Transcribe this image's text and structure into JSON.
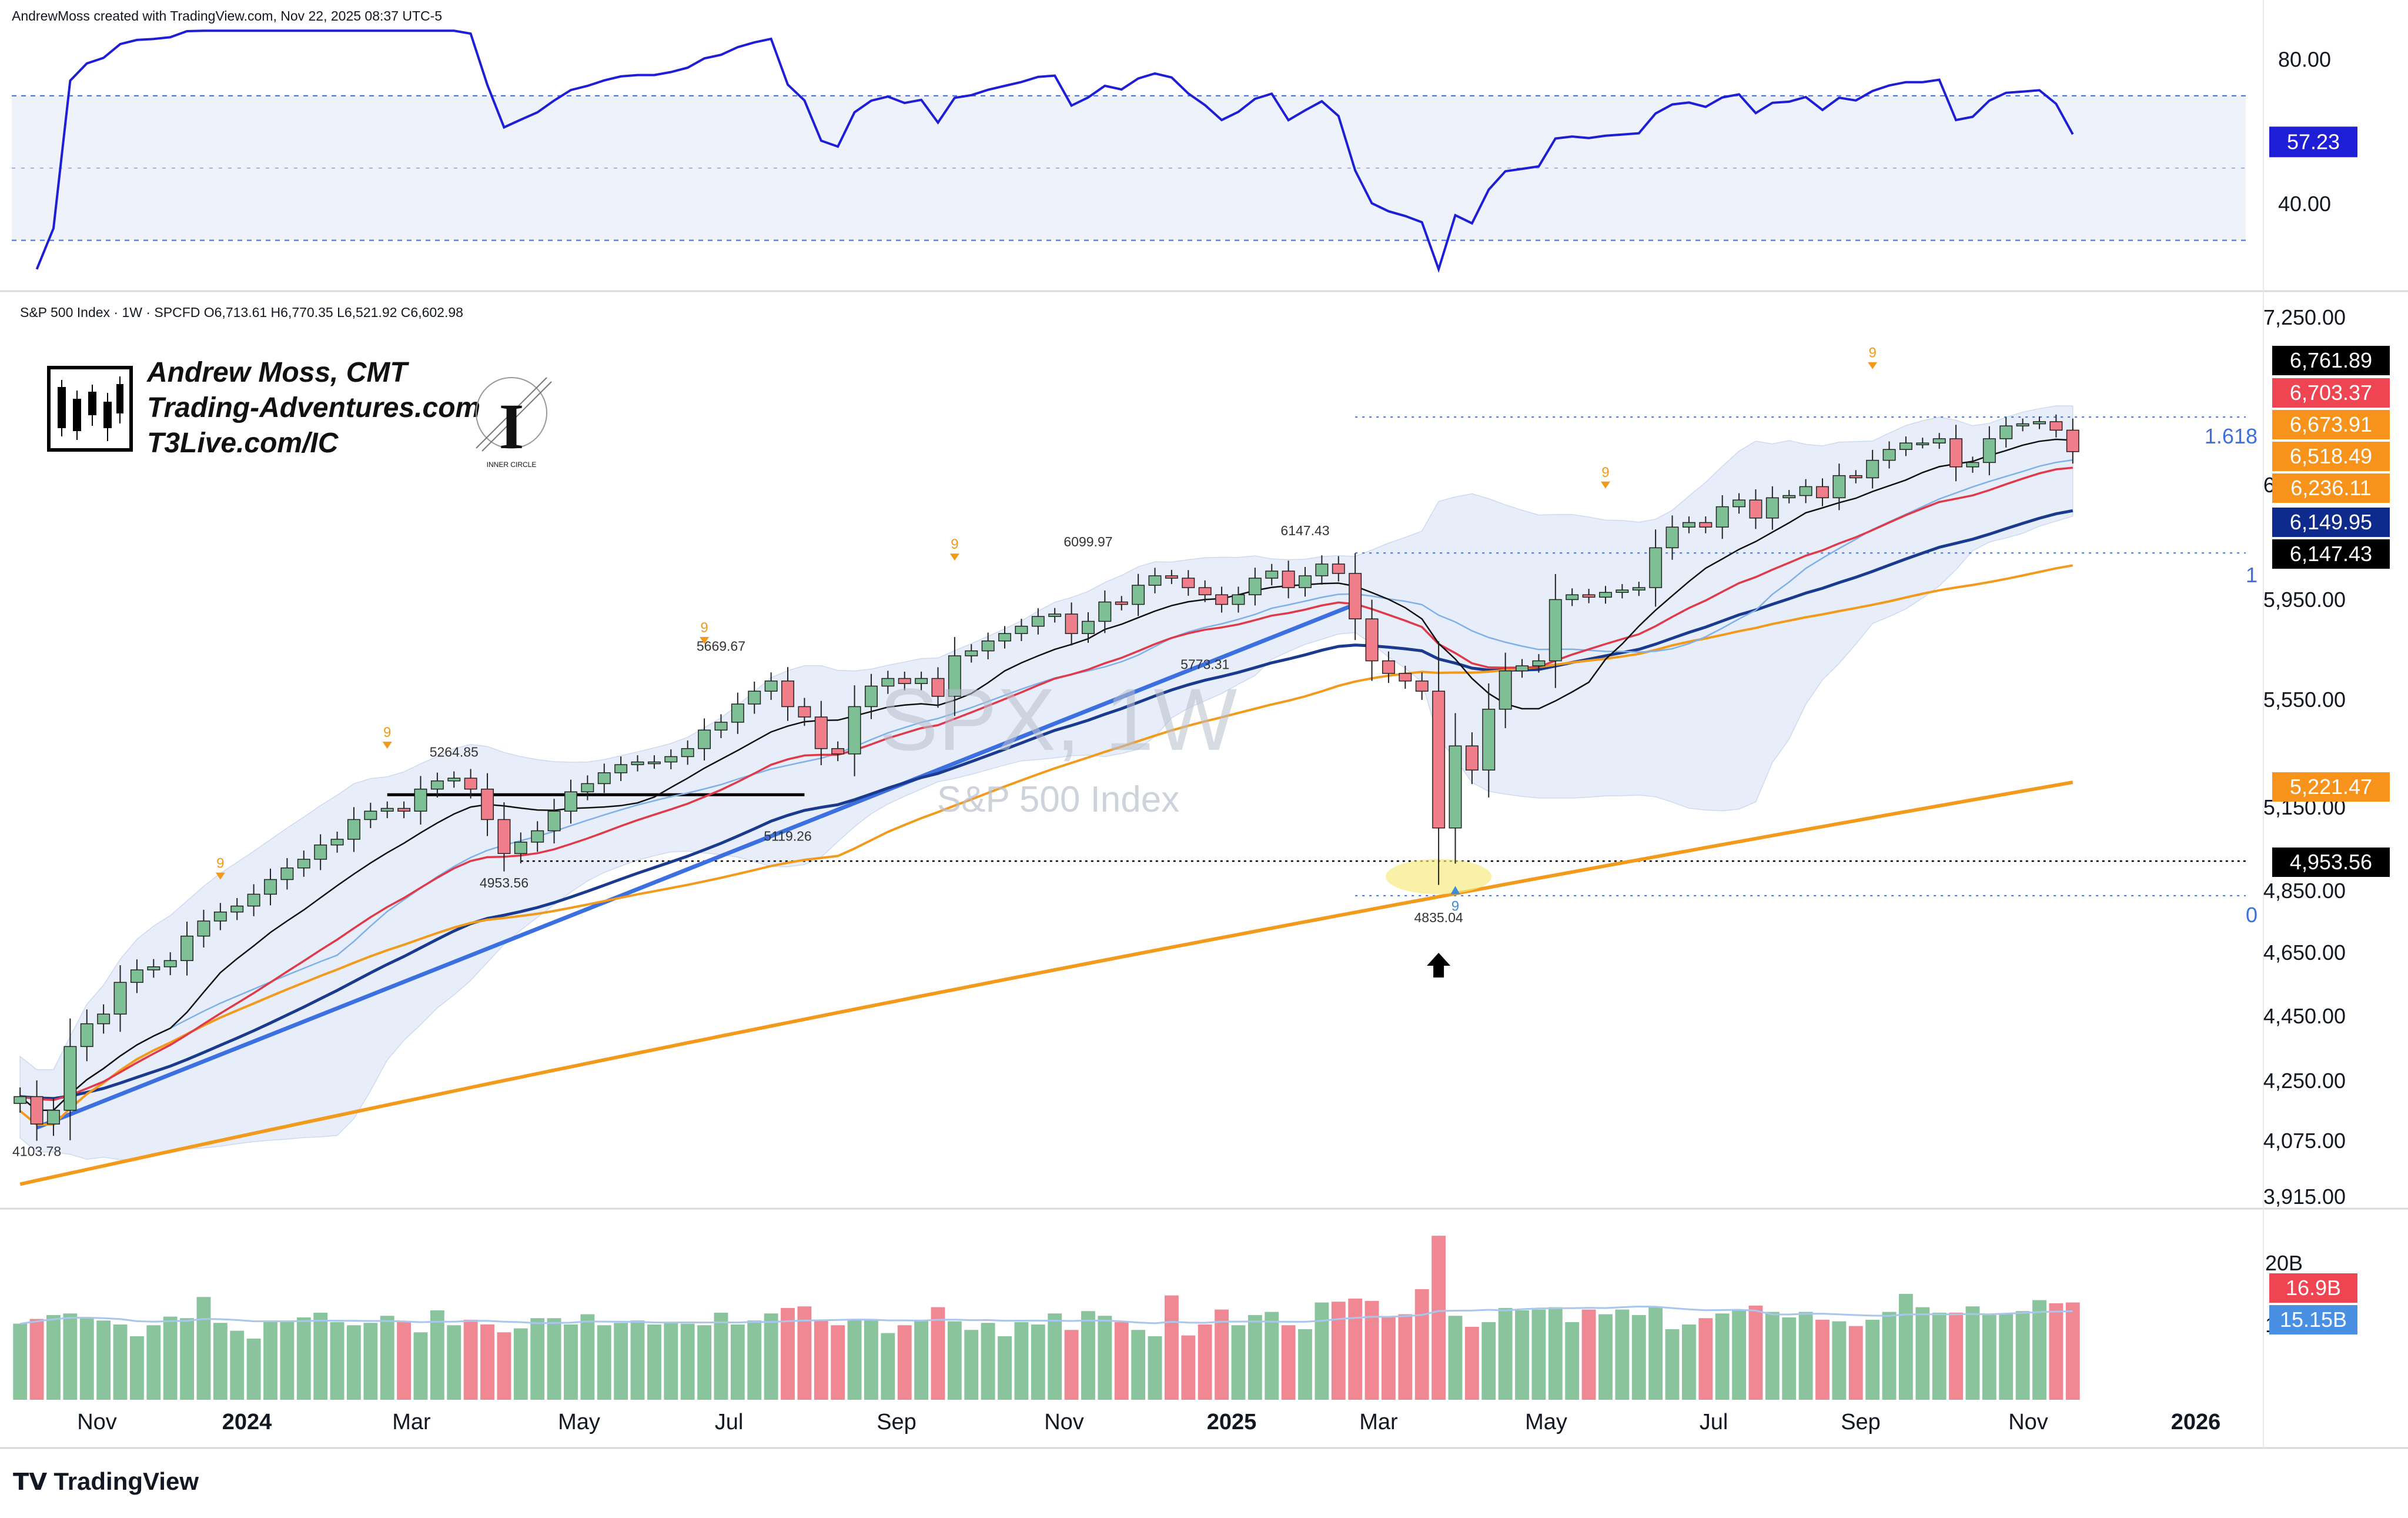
{
  "header": {
    "credit": "AndrewMoss created with TradingView.com, Nov 22, 2025 08:37 UTC-5",
    "symbol_line": "S&P 500 Index · 1W · SPCFD  O6,713.61  H6,770.35  L6,521.92  C6,602.98"
  },
  "watermark": {
    "ticker": "SPX, 1W",
    "name": "S&P 500 Index"
  },
  "branding": {
    "author_line1": "Andrew Moss, CMT",
    "author_line2": "Trading-Adventures.com",
    "author_line3": "T3Live.com/IC",
    "badge_text": "INNER CIRCLE",
    "footer": "TradingView"
  },
  "colors": {
    "up": "#7fbf95",
    "down": "#ef7e8a",
    "rsi": "#1e1ed6",
    "ma10": "#111111",
    "ema21": "#e03a4a",
    "sma50": "#f29a1c",
    "ma200": "#f29a1c",
    "ma_blue": "#1a3a8f",
    "trend": "#3c6fe0",
    "fib": "#3c6fe0"
  },
  "rsi_axis": {
    "ticks": [
      "80.00",
      "40.00"
    ],
    "current": "57.23"
  },
  "price_axis": {
    "ticks": [
      "7,250.00",
      "6,350.00",
      "5,950.00",
      "5,550.00",
      "5,150.00",
      "4,850.00",
      "4,650.00",
      "4,450.00",
      "4,250.00",
      "4,075.00",
      "3,915.00"
    ]
  },
  "price_tags": [
    {
      "value": "6,761.89",
      "color": "#000000"
    },
    {
      "value": "6,703.37",
      "color": "#ef4451"
    },
    {
      "value": "6,673.91",
      "color": "#f7931a"
    },
    {
      "value": "6,518.49",
      "color": "#f7931a"
    },
    {
      "value": "6,236.11",
      "color": "#f7931a"
    },
    {
      "value": "6,149.95",
      "color": "#0d2a8c"
    },
    {
      "value": "6,147.43",
      "color": "#000000"
    },
    {
      "value": "5,221.47",
      "color": "#f7931a"
    },
    {
      "value": "4,953.56",
      "color": "#000000"
    }
  ],
  "fib_labels": [
    "1.618",
    "1",
    "0"
  ],
  "volume_axis": {
    "ticks": [
      "20B",
      "10B"
    ],
    "tags": [
      {
        "value": "16.9B",
        "color": "#ef4451"
      },
      {
        "value": "15.15B",
        "color": "#4a90e2"
      }
    ]
  },
  "time_axis": [
    "Nov",
    "2024",
    "Mar",
    "May",
    "Jul",
    "Sep",
    "Nov",
    "2025",
    "Mar",
    "May",
    "Jul",
    "Sep",
    "Nov",
    "2026"
  ],
  "annotations": {
    "lows": [
      "4103.78",
      "4953.56",
      "5119.26",
      "5773.31",
      "4835.04"
    ],
    "highs": [
      "5264.85",
      "5669.67",
      "6099.97",
      "6147.43"
    ],
    "td9": [
      "9",
      "9",
      "9",
      "9",
      "9",
      "9",
      "9"
    ]
  },
  "chart_data": {
    "type": "candlestick",
    "title": "SPX, 1W",
    "subtitle": "S&P 500 Index",
    "interval": "1W",
    "ohlc_last": {
      "open": 6713.61,
      "high": 6770.35,
      "low": 6521.92,
      "close": 6602.98
    },
    "x_range": [
      "2023-10",
      "2025-11"
    ],
    "y_range": [
      3900,
      7300
    ],
    "closes": [
      4200,
      4120,
      4160,
      4350,
      4420,
      4450,
      4550,
      4590,
      4600,
      4620,
      4700,
      4750,
      4780,
      4800,
      4840,
      4890,
      4930,
      4960,
      5010,
      5030,
      5100,
      5130,
      5140,
      5130,
      5210,
      5240,
      5250,
      5210,
      5100,
      4980,
      5020,
      5060,
      5130,
      5200,
      5230,
      5270,
      5300,
      5310,
      5310,
      5330,
      5360,
      5430,
      5460,
      5530,
      5580,
      5620,
      5520,
      5480,
      5360,
      5340,
      5520,
      5600,
      5630,
      5610,
      5630,
      5560,
      5720,
      5740,
      5780,
      5810,
      5840,
      5880,
      5890,
      5810,
      5860,
      5940,
      5930,
      6010,
      6050,
      6040,
      6000,
      5970,
      5930,
      5970,
      6040,
      6070,
      6000,
      6050,
      6100,
      6060,
      5870,
      5700,
      5650,
      5620,
      5580,
      5070,
      5370,
      5280,
      5510,
      5660,
      5680,
      5700,
      5950,
      5970,
      5960,
      5980,
      5990,
      6000,
      6170,
      6260,
      6280,
      6260,
      6350,
      6380,
      6300,
      6390,
      6400,
      6440,
      6390,
      6490,
      6480,
      6560,
      6610,
      6640,
      6640,
      6660,
      6530,
      6550,
      6660,
      6720,
      6730,
      6740,
      6700,
      6600
    ],
    "volume_billions": [
      14.2,
      14.8,
      15.3,
      15.5,
      15.0,
      14.6,
      14.1,
      12.6,
      14.0,
      15.1,
      14.9,
      17.6,
      14.3,
      13.3,
      12.3,
      14.4,
      14.5,
      15.0,
      15.6,
      14.4,
      14.0,
      14.3,
      15.2,
      14.4,
      13.1,
      15.9,
      14.0,
      14.7,
      14.1,
      13.1,
      13.6,
      14.9,
      14.9,
      14.1,
      15.4,
      14.0,
      14.3,
      14.6,
      14.1,
      14.3,
      14.2,
      14.0,
      15.6,
      14.1,
      14.6,
      15.5,
      16.2,
      16.4,
      14.6,
      14.0,
      14.7,
      14.7,
      13.0,
      14.0,
      14.7,
      16.3,
      14.5,
      13.4,
      14.3,
      12.6,
      14.4,
      14.1,
      15.5,
      13.4,
      15.8,
      15.2,
      14.4,
      13.4,
      12.6,
      17.8,
      12.7,
      14.1,
      16.0,
      14.0,
      15.3,
      15.7,
      14.0,
      13.5,
      16.9,
      17.0,
      17.4,
      17.1,
      15.0,
      15.4,
      18.6,
      25.4,
      15.2,
      13.8,
      14.4,
      16.2,
      15.9,
      16.0,
      16.3,
      14.4,
      16.0,
      15.4,
      16.0,
      15.3,
      16.4,
      13.5,
      14.1,
      14.9,
      15.5,
      16.0,
      16.5,
      15.7,
      15.0,
      15.7,
      14.7,
      14.5,
      13.9,
      14.7,
      15.7,
      18.0,
      16.3,
      15.6,
      15.6,
      16.4,
      15.3,
      15.5,
      15.8,
      17.2,
      16.8,
      16.9
    ],
    "rsi": {
      "range": [
        20,
        90
      ],
      "current": 57.23,
      "upper_band": 70,
      "lower_band": 30
    }
  }
}
